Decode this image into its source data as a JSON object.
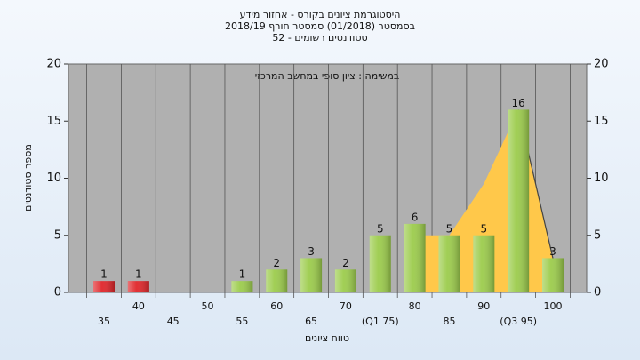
{
  "chart_data": {
    "type": "bar",
    "title_lines": [
      "היסטוגרמת ציונים בקורס - אחזור מידע",
      "בסמסטר  (01/2018)  סמסטר חורף 2018/19",
      "סטודנטים רשומים - 52"
    ],
    "annotation": "במשימה : ציון סופי במחשב המרכזי",
    "y_label": "מספר סטודנטים",
    "x_label": "טווח ציונים",
    "categories": [
      "35",
      "40",
      "45",
      "50",
      "55",
      "60",
      "65",
      "70",
      "(Q1 75)",
      "80",
      "85",
      "90",
      "(Q3 95)",
      "100"
    ],
    "values": [
      1,
      1,
      0,
      0,
      1,
      2,
      3,
      2,
      5,
      6,
      5,
      5,
      16,
      3
    ],
    "bar_colors": [
      "#e0262a",
      "#e0262a",
      "#9ccc4c",
      "#9ccc4c",
      "#9ccc4c",
      "#9ccc4c",
      "#9ccc4c",
      "#9ccc4c",
      "#9ccc4c",
      "#9ccc4c",
      "#9ccc4c",
      "#9ccc4c",
      "#9ccc4c",
      "#9ccc4c"
    ],
    "area": {
      "color": "#ffc84a",
      "values": [
        null,
        null,
        null,
        null,
        null,
        null,
        null,
        null,
        null,
        5,
        5,
        9.5,
        16,
        3
      ]
    },
    "ylim": [
      0,
      20
    ],
    "yticks": [
      0,
      5,
      10,
      15,
      20
    ],
    "y2lim": [
      0,
      20
    ],
    "y2ticks": [
      0,
      5,
      10,
      15,
      20
    ]
  }
}
